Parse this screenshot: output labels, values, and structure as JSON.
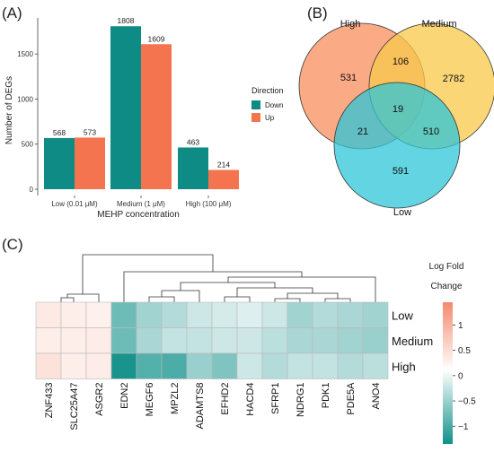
{
  "panels": {
    "a": "(A)",
    "b": "(B)",
    "c": "(C)"
  },
  "chart_data": [
    {
      "type": "bar",
      "panel": "(A)",
      "xlabel": "MEHP concentration",
      "ylabel": "Number of DEGs",
      "categories": [
        "Low (0.01 μM)",
        "Medium (1 μM)",
        "High (100 μM)"
      ],
      "series": [
        {
          "name": "Down",
          "values": [
            568,
            1808,
            463
          ],
          "color": "#0E8B84"
        },
        {
          "name": "Up",
          "values": [
            573,
            1609,
            214
          ],
          "color": "#F4744F"
        }
      ],
      "ylim": [
        0,
        1900
      ],
      "yticks": [
        0,
        500,
        1000,
        1500
      ],
      "legend": {
        "title": "Direction",
        "placement": "right"
      }
    },
    {
      "type": "venn",
      "panel": "(B)",
      "sets": [
        {
          "name": "High",
          "color": "#F98E5E"
        },
        {
          "name": "Medium",
          "color": "#F8C84A"
        },
        {
          "name": "Low",
          "color": "#2DC6D8"
        }
      ],
      "regions": {
        "high_only": 531,
        "medium_only": 2782,
        "low_only": 591,
        "high_medium": 106,
        "high_low": 21,
        "medium_low": 510,
        "all": 19
      }
    },
    {
      "type": "heatmap",
      "panel": "(C)",
      "columns": [
        "ZNF433",
        "SLC25A47",
        "ASGR2",
        "EDN2",
        "MEGF6",
        "MPZL2",
        "ADAMTS8",
        "EFHD2",
        "HACD4",
        "SFRP1",
        "NDRG1",
        "PDK1",
        "PDE5A",
        "ANO4"
      ],
      "rows": [
        "Low",
        "Medium",
        "High"
      ],
      "values": [
        [
          0.25,
          0.2,
          0.18,
          -0.85,
          -0.55,
          -0.45,
          -0.3,
          -0.25,
          -0.2,
          -0.3,
          -0.55,
          -0.45,
          -0.5,
          -0.55
        ],
        [
          0.2,
          0.2,
          0.22,
          -0.85,
          -0.5,
          -0.35,
          -0.35,
          -0.3,
          -0.3,
          -0.4,
          -0.5,
          -0.5,
          -0.55,
          -0.6
        ],
        [
          0.35,
          0.2,
          0.22,
          -1.35,
          -1.0,
          -1.05,
          -0.6,
          -0.75,
          -0.3,
          -0.45,
          -0.35,
          -0.35,
          -0.45,
          -0.4
        ]
      ],
      "legend": {
        "title_line1": "Log Fold",
        "title_line2": "Change",
        "range": [
          -1.35,
          1.45
        ],
        "ticks": [
          1,
          0.5,
          0,
          -0.5,
          -1
        ]
      }
    }
  ]
}
